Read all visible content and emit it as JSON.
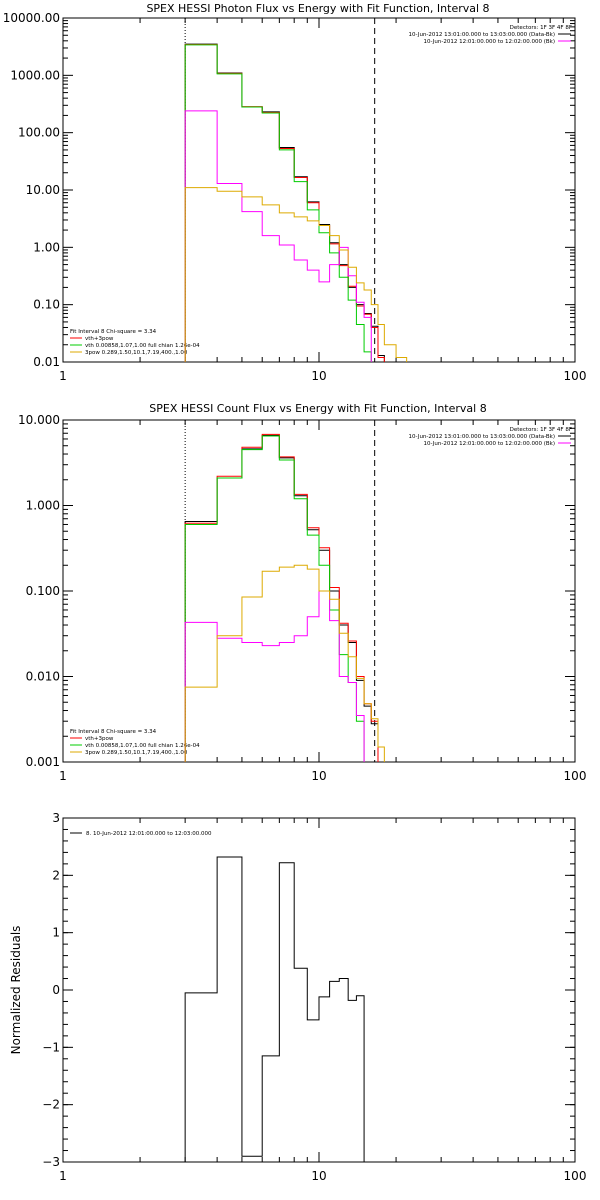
{
  "chart_data": [
    {
      "type": "line",
      "title": "SPEX HESSI Photon Flux vs Energy with Fit Function, Interval 8",
      "x_scale": "log",
      "y_scale": "log",
      "xlim": [
        1,
        100
      ],
      "ylim": [
        0.01,
        10000
      ],
      "x_ticks": [
        "1",
        "10",
        "100"
      ],
      "y_ticks": [
        "0.01",
        "0.10",
        "1.00",
        "10.00",
        "100.00",
        "1000.00",
        "10000.00"
      ],
      "y_tick_values": [
        0.01,
        0.1,
        1,
        10,
        100,
        1000,
        10000
      ],
      "bin_edges": [
        3,
        4,
        5,
        6,
        7,
        8,
        9,
        10,
        11,
        12,
        13,
        14,
        15,
        16,
        17,
        18,
        20,
        22,
        24
      ],
      "vlines": [
        {
          "x": 3,
          "style": "dotted"
        },
        {
          "x": 16.5,
          "style": "dashed"
        }
      ],
      "legend_top": [
        "Detectors: 1F 3F 4F 8F",
        "10-Jun-2012 13:01:00.000 to 13:03:00.000 (Data-Bk)",
        "10-Jun-2012 12:01:00.000 to 12:02:00.000 (Bk)"
      ],
      "legend_top_colors": [
        "",
        "#000000",
        "#ff00ff"
      ],
      "legend_bottom": [
        "Fit Interval 8   Chi-square = 3.34",
        "vth+3pow",
        "vth 0.00858,1.07,1.00  full chian 1.26e-04",
        "3pow 0.289,1.50,10.1,7.19,400.,1.00"
      ],
      "legend_bottom_colors": [
        "",
        "#ff0000",
        "#00cc00",
        "#ddaa00"
      ],
      "series": [
        {
          "color": "#000000",
          "values": [
            3500,
            1100,
            280,
            230,
            55,
            17,
            6.2,
            2.5,
            1.2,
            0.5,
            0.2,
            0.1,
            0.07,
            0.042,
            0.013,
            null,
            null,
            null
          ]
        },
        {
          "color": "#ff0000",
          "values": [
            3450,
            1080,
            285,
            225,
            53,
            16.5,
            6.0,
            2.4,
            1.15,
            0.48,
            0.21,
            0.095,
            0.068,
            0.04,
            0.012,
            null,
            null,
            null
          ]
        },
        {
          "color": "#00cc00",
          "values": [
            3400,
            1060,
            280,
            220,
            50,
            14,
            4.5,
            1.8,
            0.8,
            0.3,
            0.12,
            0.045,
            0.015,
            null,
            null,
            null,
            null,
            null
          ]
        },
        {
          "color": "#ff00ff",
          "values": [
            240,
            13,
            4.2,
            1.6,
            1.1,
            0.6,
            0.4,
            0.25,
            0.5,
            1.0,
            0.32,
            0.11,
            0.06,
            null,
            null,
            null,
            null,
            null
          ]
        },
        {
          "color": "#ddaa00",
          "values": [
            11,
            9.5,
            7.6,
            5.5,
            4.0,
            3.4,
            2.9,
            2.4,
            1.6,
            0.9,
            0.45,
            0.24,
            0.18,
            0.1,
            0.045,
            0.02,
            0.012,
            null
          ]
        }
      ]
    },
    {
      "type": "line",
      "title": "SPEX HESSI Count Flux vs Energy with Fit Function, Interval 8",
      "x_scale": "log",
      "y_scale": "log",
      "xlim": [
        1,
        100
      ],
      "ylim": [
        0.001,
        10
      ],
      "x_ticks": [
        "1",
        "10",
        "100"
      ],
      "y_ticks": [
        "0.001",
        "0.010",
        "0.100",
        "1.000",
        "10.000"
      ],
      "y_tick_values": [
        0.001,
        0.01,
        0.1,
        1,
        10
      ],
      "bin_edges": [
        3,
        4,
        5,
        6,
        7,
        8,
        9,
        10,
        11,
        12,
        13,
        14,
        15,
        16,
        17,
        18,
        20,
        22,
        24
      ],
      "vlines": [
        {
          "x": 3,
          "style": "dotted"
        },
        {
          "x": 16.5,
          "style": "dashed"
        }
      ],
      "legend_top": [
        "Detectors: 1F 3F 4F 8F",
        "10-Jun-2012 13:01:00.000 to 13:03:00.000 (Data-Bk)",
        "10-Jun-2012 12:01:00.000 to 12:02:00.000 (Bk)"
      ],
      "legend_top_colors": [
        "",
        "#000000",
        "#ff00ff"
      ],
      "legend_bottom": [
        "Fit Interval 8   Chi-square = 3.34",
        "vth+3pow",
        "vth 0.00858,1.07,1.00  full chian 1.26e-04",
        "3pow 0.289,1.50,10.1,7.19,400.,1.00"
      ],
      "legend_bottom_colors": [
        "",
        "#ff0000",
        "#00cc00",
        "#ddaa00"
      ],
      "series": [
        {
          "color": "#000000",
          "values": [
            0.65,
            2.1,
            4.6,
            6.6,
            3.6,
            1.3,
            0.52,
            0.3,
            0.1,
            0.04,
            0.025,
            0.009,
            0.0045,
            0.0028,
            null,
            null,
            null,
            null
          ]
        },
        {
          "color": "#ff0000",
          "values": [
            0.62,
            2.2,
            4.8,
            6.8,
            3.7,
            1.35,
            0.55,
            0.32,
            0.11,
            0.042,
            0.026,
            0.01,
            0.0048,
            0.003,
            null,
            null,
            null,
            null
          ]
        },
        {
          "color": "#00cc00",
          "values": [
            0.6,
            2.1,
            4.5,
            6.5,
            3.4,
            1.2,
            0.45,
            0.2,
            0.06,
            0.018,
            0.0085,
            0.003,
            null,
            null,
            null,
            null,
            null,
            null
          ]
        },
        {
          "color": "#ff00ff",
          "values": [
            0.043,
            0.028,
            0.025,
            0.023,
            0.025,
            0.03,
            0.05,
            0.1,
            0.045,
            0.01,
            0.0085,
            0.0035,
            null,
            null,
            null,
            null,
            null,
            null
          ]
        },
        {
          "color": "#ddaa00",
          "values": [
            0.0075,
            0.03,
            0.085,
            0.17,
            0.19,
            0.2,
            0.18,
            0.1,
            0.08,
            0.032,
            0.017,
            0.0095,
            0.0048,
            0.0032,
            0.0015,
            null,
            null,
            null
          ]
        }
      ]
    },
    {
      "type": "line",
      "x_scale": "log",
      "y_scale": "linear",
      "xlim": [
        1,
        100
      ],
      "ylim": [
        -3,
        3
      ],
      "ylabel": "Normalized Residuals",
      "x_ticks": [
        "1",
        "10",
        "100"
      ],
      "y_ticks": [
        "−3",
        "−2",
        "−1",
        "0",
        "1",
        "2",
        "3"
      ],
      "y_tick_values": [
        -3,
        -2,
        -1,
        0,
        1,
        2,
        3
      ],
      "bin_edges": [
        3,
        4,
        5,
        6,
        7,
        8,
        9,
        10,
        11,
        12,
        13,
        14,
        15,
        16,
        17
      ],
      "legend_top": [
        "8. 10-Jun-2012 12:01:00.000 to 12:03:00.000"
      ],
      "series": [
        {
          "color": "#000000",
          "values": [
            -0.05,
            2.32,
            -2.9,
            -1.15,
            2.22,
            0.38,
            -0.52,
            -0.12,
            0.15,
            0.2,
            -0.18,
            -0.1,
            null,
            null
          ]
        }
      ]
    }
  ]
}
